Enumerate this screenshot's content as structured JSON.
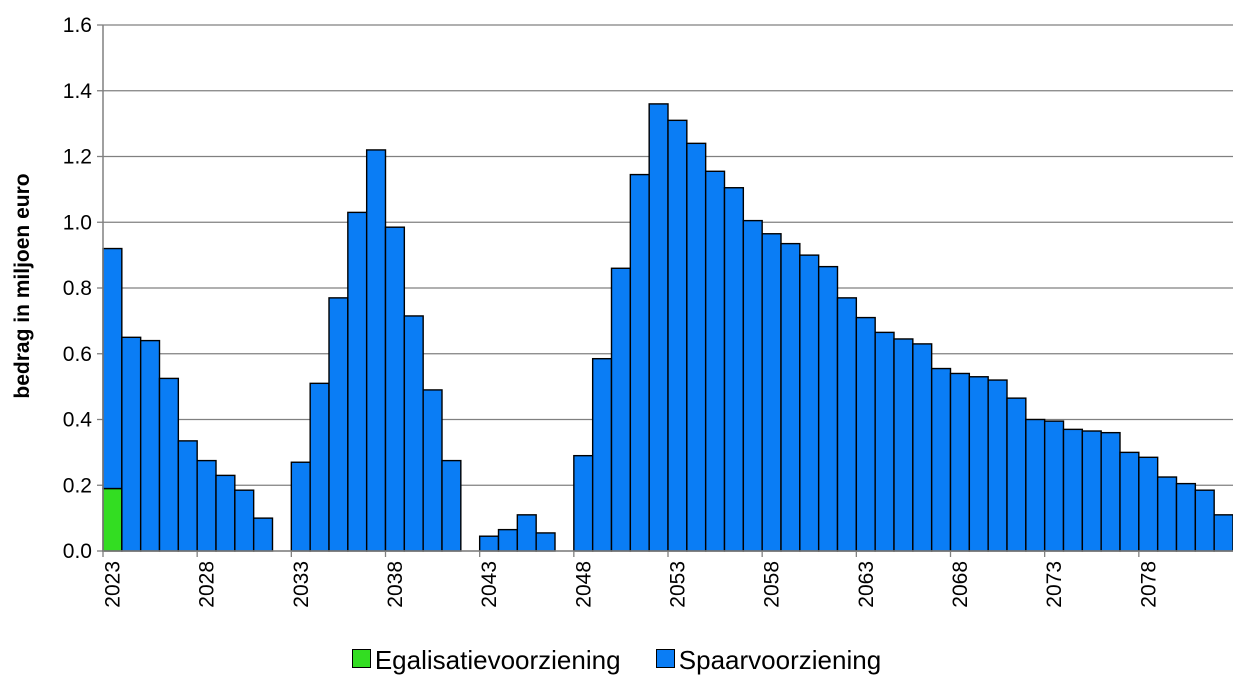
{
  "chart_data": {
    "type": "bar",
    "stacked": true,
    "title": "",
    "xlabel": "",
    "ylabel": "bedrag in miljoen euro",
    "ylim": [
      0,
      1.6
    ],
    "yticks": [
      "0.0",
      "0.2",
      "0.4",
      "0.6",
      "0.8",
      "1.0",
      "1.2",
      "1.4",
      "1.6"
    ],
    "grid": true,
    "legend_position": "bottom",
    "x_tick_labels": [
      "2023",
      "2028",
      "2033",
      "2038",
      "2043",
      "2048",
      "2053",
      "2058",
      "2063",
      "2068",
      "2073",
      "2078"
    ],
    "categories": [
      2023,
      2024,
      2025,
      2026,
      2027,
      2028,
      2029,
      2030,
      2031,
      2032,
      2033,
      2034,
      2035,
      2036,
      2037,
      2038,
      2039,
      2040,
      2041,
      2042,
      2043,
      2044,
      2045,
      2046,
      2047,
      2048,
      2049,
      2050,
      2051,
      2052,
      2053,
      2054,
      2055,
      2056,
      2057,
      2058,
      2059,
      2060,
      2061,
      2062,
      2063,
      2064,
      2065,
      2066,
      2067,
      2068,
      2069,
      2070,
      2071,
      2072,
      2073,
      2074,
      2075,
      2076,
      2077,
      2078,
      2079,
      2080,
      2081,
      2082
    ],
    "series": [
      {
        "name": "Egalisatievoorziening",
        "color": "#33dd22",
        "values": [
          0.19,
          0,
          0,
          0,
          0,
          0,
          0,
          0,
          0,
          0,
          0,
          0,
          0,
          0,
          0,
          0,
          0,
          0,
          0,
          0,
          0,
          0,
          0,
          0,
          0,
          0,
          0,
          0,
          0,
          0,
          0,
          0,
          0,
          0,
          0,
          0,
          0,
          0,
          0,
          0,
          0,
          0,
          0,
          0,
          0,
          0,
          0,
          0,
          0,
          0,
          0,
          0,
          0,
          0,
          0,
          0,
          0,
          0,
          0,
          0
        ]
      },
      {
        "name": "Spaarvoorziening",
        "color": "#0a7df5",
        "values": [
          0.73,
          0.65,
          0.64,
          0.525,
          0.335,
          0.275,
          0.23,
          0.185,
          0.1,
          0,
          0.27,
          0.51,
          0.77,
          1.03,
          1.22,
          0.985,
          0.715,
          0.49,
          0.275,
          0,
          0.045,
          0.065,
          0.11,
          0.055,
          0,
          0.29,
          0.585,
          0.86,
          1.145,
          1.36,
          1.31,
          1.24,
          1.155,
          1.105,
          1.005,
          0.965,
          0.935,
          0.9,
          0.865,
          0.77,
          0.71,
          0.665,
          0.645,
          0.63,
          0.555,
          0.54,
          0.53,
          0.52,
          0.465,
          0.4,
          0.395,
          0.37,
          0.365,
          0.36,
          0.3,
          0.285,
          0.225,
          0.205,
          0.185,
          0.11
        ]
      }
    ]
  }
}
